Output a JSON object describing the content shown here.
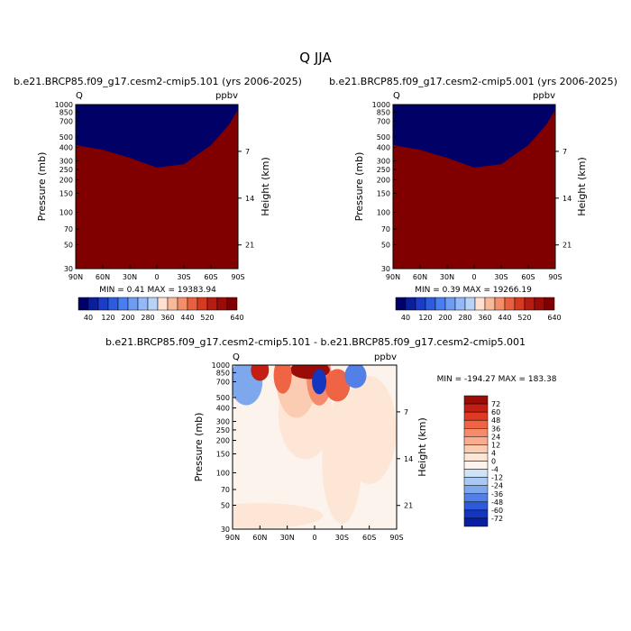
{
  "figure_title": "Q  JJA",
  "chart_data": [
    {
      "type": "contour",
      "title": "b.e21.BRCP85.f09_g17.cesm2-cmip5.101 (yrs 2006-2025)",
      "corner_left": "Q",
      "corner_right": "ppbv",
      "xlabel": "",
      "ylabel": "Pressure (mb)",
      "ylabel_right": "Height (km)",
      "x_ticks": [
        "90N",
        "60N",
        "30N",
        "0",
        "30S",
        "60S",
        "90S"
      ],
      "y_ticks": [
        "30",
        "50",
        "70",
        "100",
        "150",
        "200",
        "250",
        "300",
        "400",
        "500",
        "700",
        "850",
        "1000"
      ],
      "height_ticks": [
        "21",
        "14",
        "7"
      ],
      "stats": "MIN =    0.41   MAX = 19383.94",
      "levels": [
        40,
        80,
        120,
        160,
        200,
        240,
        280,
        320,
        360,
        400,
        440,
        480,
        520,
        560,
        600,
        640
      ],
      "colorbar_labels": [
        "40",
        "120",
        "200",
        "280",
        "360",
        "440",
        "520",
        "640"
      ],
      "colors": [
        "#000066",
        "#0a1f9e",
        "#1a3cc8",
        "#2e5ce0",
        "#4a7ef0",
        "#6d9cf5",
        "#93b9f7",
        "#b8d2f8",
        "#fde0d0",
        "#f9b89a",
        "#f28e6a",
        "#e8613f",
        "#d63a22",
        "#b81c10",
        "#9a0c08",
        "#800000"
      ],
      "boundary_pressure_mb": [
        420,
        380,
        320,
        260,
        280,
        420,
        650,
        900
      ],
      "boundary_lat": [
        "90N",
        "60N",
        "30N",
        "0",
        "30S",
        "60S",
        "80S",
        "90S"
      ]
    },
    {
      "type": "contour",
      "title": "b.e21.BRCP85.f09_g17.cesm2-cmip5.001 (yrs 2006-2025)",
      "corner_left": "Q",
      "corner_right": "ppbv",
      "xlabel": "",
      "ylabel": "Pressure (mb)",
      "ylabel_right": "Height (km)",
      "x_ticks": [
        "90N",
        "60N",
        "30N",
        "0",
        "30S",
        "60S",
        "90S"
      ],
      "y_ticks": [
        "30",
        "50",
        "70",
        "100",
        "150",
        "200",
        "250",
        "300",
        "400",
        "500",
        "700",
        "850",
        "1000"
      ],
      "height_ticks": [
        "21",
        "14",
        "7"
      ],
      "stats": "MIN =    0.39   MAX = 19266.19",
      "levels": [
        40,
        80,
        120,
        160,
        200,
        240,
        280,
        320,
        360,
        400,
        440,
        480,
        520,
        560,
        600,
        640
      ],
      "colorbar_labels": [
        "40",
        "120",
        "200",
        "280",
        "360",
        "440",
        "520",
        "640"
      ],
      "colors": [
        "#000066",
        "#0a1f9e",
        "#1a3cc8",
        "#2e5ce0",
        "#4a7ef0",
        "#6d9cf5",
        "#93b9f7",
        "#b8d2f8",
        "#fde0d0",
        "#f9b89a",
        "#f28e6a",
        "#e8613f",
        "#d63a22",
        "#b81c10",
        "#9a0c08",
        "#800000"
      ],
      "boundary_pressure_mb": [
        420,
        380,
        320,
        260,
        280,
        420,
        650,
        900
      ],
      "boundary_lat": [
        "90N",
        "60N",
        "30N",
        "0",
        "30S",
        "60S",
        "80S",
        "90S"
      ]
    },
    {
      "type": "contour",
      "title": "b.e21.BRCP85.f09_g17.cesm2-cmip5.101 - b.e21.BRCP85.f09_g17.cesm2-cmip5.001",
      "corner_left": "Q",
      "corner_right": "ppbv",
      "xlabel": "",
      "ylabel": "Pressure (mb)",
      "ylabel_right": "Height (km)",
      "x_ticks": [
        "90N",
        "60N",
        "30N",
        "0",
        "30S",
        "60S",
        "90S"
      ],
      "y_ticks": [
        "30",
        "50",
        "70",
        "100",
        "150",
        "200",
        "250",
        "300",
        "400",
        "500",
        "700",
        "850",
        "1000"
      ],
      "height_ticks": [
        "21",
        "14",
        "7"
      ],
      "stats": "MIN = -194.27  MAX = 183.38",
      "levels": [
        72,
        60,
        48,
        36,
        24,
        12,
        4,
        0,
        -4,
        -12,
        -24,
        -36,
        -48,
        -60,
        -72
      ],
      "colorbar_labels": [
        "72",
        "60",
        "48",
        "36",
        "24",
        "12",
        "4",
        "0",
        "-4",
        "-12",
        "-24",
        "-36",
        "-48",
        "-60",
        "-72"
      ],
      "colors": [
        "#9a0c08",
        "#c41e14",
        "#e03a22",
        "#ee6444",
        "#f58b6a",
        "#f9ad8e",
        "#fbcbb2",
        "#fde6d6",
        "#fbf3ec",
        "#cfe2f8",
        "#a9c8f4",
        "#7ea8ee",
        "#5280e6",
        "#2c5ad8",
        "#1236c0",
        "#0a1fa0"
      ]
    }
  ]
}
